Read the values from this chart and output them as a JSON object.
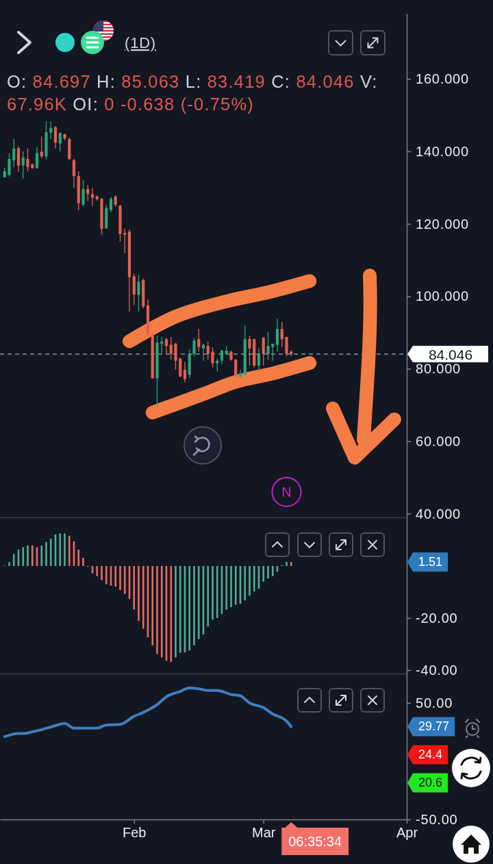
{
  "chart_data": [
    {
      "type": "candlestick",
      "title": "(1D)",
      "subtitle": "O: 84.697 H: 85.063 L: 83.419 C: 84.046 V: 67.96K OI: 0 -0.638 (-0.75%)",
      "x": [
        "--01-04",
        "--01-05",
        "--01-06",
        "--01-07",
        "--01-08",
        "--01-09",
        "--01-10",
        "--01-11",
        "--01-12",
        "--01-13",
        "--01-14",
        "--01-15",
        "--01-16",
        "--01-17",
        "--01-18",
        "--01-19",
        "--01-20",
        "--01-21",
        "--01-22",
        "--01-23",
        "--01-24",
        "--01-25",
        "--01-26",
        "--01-27",
        "--01-28",
        "--01-29",
        "--01-30",
        "--01-31",
        "--02-01",
        "--02-02",
        "--02-03",
        "--02-04",
        "--02-05",
        "--02-06",
        "--02-07",
        "--02-08",
        "--02-09",
        "--02-10",
        "--02-11",
        "--02-12",
        "--02-13",
        "--02-14",
        "--02-15",
        "--02-16",
        "--02-17",
        "--02-18",
        "--02-19",
        "--02-20",
        "--02-21",
        "--02-22",
        "--02-23",
        "--02-24",
        "--02-25",
        "--02-26",
        "--02-27",
        "--02-28",
        "--03-01",
        "--03-02",
        "--03-03",
        "--03-04",
        "--03-05",
        "--03-06",
        "--03-07"
      ],
      "ohlc": [
        [
          132.9,
          135.4,
          132.7,
          134.5
        ],
        [
          133.5,
          139.5,
          133.1,
          137.9
        ],
        [
          137.6,
          143.4,
          135.7,
          140.8
        ],
        [
          140.9,
          141.4,
          134.4,
          136.1
        ],
        [
          136.1,
          140.0,
          132.5,
          138.3
        ],
        [
          137.9,
          140.8,
          134.6,
          135.7
        ],
        [
          136.4,
          136.7,
          135.2,
          135.4
        ],
        [
          135.4,
          141.1,
          135.2,
          139.5
        ],
        [
          139.9,
          144.1,
          138.1,
          138.6
        ],
        [
          138.6,
          148.3,
          137.8,
          145.3
        ],
        [
          145.2,
          148.3,
          143.4,
          146.4
        ],
        [
          146.7,
          147.0,
          140.8,
          142.4
        ],
        [
          142.2,
          145.3,
          140.0,
          145.1
        ],
        [
          144.7,
          144.9,
          143.0,
          143.6
        ],
        [
          143.4,
          143.8,
          137.6,
          137.9
        ],
        [
          137.6,
          137.9,
          129.8,
          133.2
        ],
        [
          133.2,
          134.5,
          123.8,
          125.7
        ],
        [
          125.3,
          132.1,
          124.7,
          129.6
        ],
        [
          129.6,
          130.7,
          126.3,
          128.2
        ],
        [
          128.2,
          129.8,
          124.9,
          127.2
        ],
        [
          127.5,
          127.9,
          126.4,
          126.8
        ],
        [
          126.9,
          127.2,
          117.0,
          118.6
        ],
        [
          118.7,
          125.3,
          118.7,
          124.4
        ],
        [
          123.8,
          127.5,
          123.1,
          126.9
        ],
        [
          127.5,
          127.9,
          124.7,
          125.3
        ],
        [
          125.0,
          125.3,
          115.1,
          117.2
        ],
        [
          117.5,
          118.7,
          111.9,
          117.0
        ],
        [
          117.8,
          118.4,
          95.8,
          105.3
        ],
        [
          105.5,
          106.3,
          97.6,
          100.4
        ],
        [
          100.4,
          106.0,
          95.8,
          104.0
        ],
        [
          104.5,
          104.9,
          96.7,
          97.2
        ],
        [
          97.5,
          99.2,
          89.0,
          89.5
        ],
        [
          89.5,
          89.8,
          77.2,
          77.4
        ],
        [
          77.4,
          89.1,
          69.8,
          87.2
        ],
        [
          86.9,
          88.8,
          84.4,
          87.5
        ],
        [
          88.1,
          88.5,
          84.1,
          86.3
        ],
        [
          86.6,
          88.8,
          82.5,
          84.1
        ],
        [
          86.9,
          87.2,
          79.7,
          82.2
        ],
        [
          82.8,
          83.1,
          77.8,
          77.8
        ],
        [
          79.7,
          81.9,
          76.2,
          77.1
        ],
        [
          78.4,
          85.3,
          77.5,
          84.1
        ],
        [
          84.1,
          88.5,
          83.4,
          87.8
        ],
        [
          88.2,
          91.0,
          84.7,
          86.0
        ],
        [
          85.6,
          86.9,
          82.2,
          86.6
        ],
        [
          86.3,
          87.5,
          82.5,
          84.1
        ],
        [
          84.7,
          85.9,
          80.3,
          81.5
        ],
        [
          81.5,
          82.8,
          79.3,
          82.2
        ],
        [
          82.2,
          85.3,
          81.2,
          85.0
        ],
        [
          84.1,
          86.3,
          83.8,
          85.0
        ],
        [
          84.7,
          85.0,
          82.2,
          82.5
        ],
        [
          82.5,
          82.8,
          77.8,
          77.8
        ],
        [
          77.8,
          79.7,
          77.5,
          78.7
        ],
        [
          78.4,
          91.9,
          78.1,
          88.2
        ],
        [
          88.2,
          89.1,
          80.9,
          85.6
        ],
        [
          88.2,
          88.2,
          80.3,
          80.9
        ],
        [
          80.9,
          85.6,
          79.3,
          84.1
        ],
        [
          88.5,
          88.8,
          80.9,
          84.1
        ],
        [
          84.1,
          90.1,
          82.5,
          86.3
        ],
        [
          86.0,
          86.9,
          82.2,
          86.9
        ],
        [
          86.6,
          93.8,
          84.7,
          91.0
        ],
        [
          91.0,
          92.9,
          86.0,
          88.2
        ],
        [
          88.8,
          88.8,
          83.4,
          84.1
        ],
        [
          84.697,
          85.063,
          83.419,
          84.046
        ]
      ],
      "colors": [
        "#2ba57a",
        "#2ba57a",
        "#2ba57a",
        "#e4604f",
        "#2ba57a",
        "#e4604f",
        "#e4604f",
        "#2ba57a",
        "#e4604f",
        "#2ba57a",
        "#2ba57a",
        "#e4604f",
        "#2ba57a",
        "#e4604f",
        "#e4604f",
        "#e4604f",
        "#e4604f",
        "#2ba57a",
        "#e4604f",
        "#e4604f",
        "#e4604f",
        "#e4604f",
        "#2ba57a",
        "#2ba57a",
        "#e4604f",
        "#e4604f",
        "#e4604f",
        "#e4604f",
        "#e4604f",
        "#2ba57a",
        "#e4604f",
        "#e4604f",
        "#e4604f",
        "#2ba57a",
        "#2ba57a",
        "#e4604f",
        "#e4604f",
        "#e4604f",
        "#e4604f",
        "#e4604f",
        "#2ba57a",
        "#2ba57a",
        "#e4604f",
        "#2ba57a",
        "#e4604f",
        "#e4604f",
        "#2ba57a",
        "#2ba57a",
        "#2ba57a",
        "#e4604f",
        "#e4604f",
        "#2ba57a",
        "#2ba57a",
        "#e4604f",
        "#e4604f",
        "#2ba57a",
        "#e4604f",
        "#2ba57a",
        "#2ba57a",
        "#2ba57a",
        "#e4604f",
        "#e4604f",
        "#e4604f"
      ],
      "series": [
        {
          "type": "line",
          "color": "#f47c45",
          "x": [
            "--01-31",
            "--02-10",
            "--02-21",
            "--03-03",
            "--03-11"
          ],
          "values": [
            87.6,
            94.4,
            98.6,
            101.4,
            104.2
          ]
        },
        {
          "type": "line",
          "color": "#f47c45",
          "x": [
            "--02-05",
            "--02-16",
            "--02-23",
            "--03-03",
            "--03-11"
          ],
          "values": [
            67.9,
            73.0,
            76.4,
            78.7,
            81.6
          ]
        }
      ],
      "xlim": [
        "--01-03",
        "--04-01"
      ],
      "ylim": [
        39,
        178
      ],
      "yticks": [
        {
          "value": 160,
          "label": "160.000"
        },
        {
          "value": 140,
          "label": "140.000"
        },
        {
          "value": 120,
          "label": "120.000"
        },
        {
          "value": 100,
          "label": "100.000"
        },
        {
          "value": 80,
          "label": "80.000"
        },
        {
          "value": 60,
          "label": "60.000"
        },
        {
          "value": 40,
          "label": "40.000"
        }
      ],
      "tick_labels": "y",
      "ref_lines": [
        {
          "axis": "y",
          "value": 84.046,
          "label": "84.046",
          "line_style": "dashed",
          "color": "#8d909b"
        }
      ],
      "annotations": [
        {
          "text": "N",
          "x": "--03-06"
        }
      ]
    },
    {
      "type": "bar",
      "x": [
        "--01-04",
        "--01-05",
        "--01-06",
        "--01-07",
        "--01-08",
        "--01-09",
        "--01-10",
        "--01-11",
        "--01-12",
        "--01-13",
        "--01-14",
        "--01-15",
        "--01-16",
        "--01-17",
        "--01-18",
        "--01-19",
        "--01-20",
        "--01-21",
        "--01-22",
        "--01-23",
        "--01-24",
        "--01-25",
        "--01-26",
        "--01-27",
        "--01-28",
        "--01-29",
        "--01-30",
        "--01-31",
        "--02-01",
        "--02-02",
        "--02-03",
        "--02-04",
        "--02-05",
        "--02-06",
        "--02-07",
        "--02-08",
        "--02-09",
        "--02-10",
        "--02-11",
        "--02-12",
        "--02-13",
        "--02-14",
        "--02-15",
        "--02-16",
        "--02-17",
        "--02-18",
        "--02-19",
        "--02-20",
        "--02-21",
        "--02-22",
        "--02-23",
        "--02-24",
        "--02-25",
        "--02-26",
        "--02-27",
        "--02-28",
        "--03-01",
        "--03-02",
        "--03-03",
        "--03-04",
        "--03-05",
        "--03-06",
        "--03-07"
      ],
      "values": [
        0.2,
        1.5,
        4.6,
        6.3,
        7.2,
        7.9,
        7.9,
        7.2,
        7.9,
        9.2,
        10.5,
        12.1,
        12.5,
        12.5,
        11.6,
        9.5,
        6.3,
        3.1,
        -0.3,
        -2.8,
        -3.9,
        -5.4,
        -7.0,
        -7.5,
        -7.9,
        -9.2,
        -10.7,
        -12.7,
        -16.7,
        -21.1,
        -24.1,
        -27.4,
        -30.5,
        -33.8,
        -35.1,
        -36.4,
        -36.8,
        -35.1,
        -33.3,
        -33.2,
        -32.5,
        -30.5,
        -28.1,
        -26.3,
        -23.2,
        -20.6,
        -20.0,
        -18.4,
        -16.7,
        -15.8,
        -14.9,
        -14.5,
        -13.2,
        -11.4,
        -9.8,
        -8.8,
        -6.0,
        -4.8,
        -3.9,
        -2.2,
        0.3,
        1.6,
        1.51
      ],
      "colors": [
        "#4fae96",
        "#4fae96",
        "#4fae96",
        "#4fae96",
        "#4fae96",
        "#4fae96",
        "#e86b62",
        "#e86b62",
        "#4fae96",
        "#4fae96",
        "#4fae96",
        "#4fae96",
        "#4fae96",
        "#4fae96",
        "#e86b62",
        "#e86b62",
        "#e86b62",
        "#e86b62",
        "#e86b62",
        "#e86b62",
        "#e86b62",
        "#e86b62",
        "#e86b62",
        "#e86b62",
        "#e86b62",
        "#e86b62",
        "#e86b62",
        "#e86b62",
        "#e86b62",
        "#e86b62",
        "#e86b62",
        "#e86b62",
        "#e86b62",
        "#e86b62",
        "#e86b62",
        "#e86b62",
        "#e86b62",
        "#4fae96",
        "#4fae96",
        "#4fae96",
        "#4fae96",
        "#4fae96",
        "#4fae96",
        "#4fae96",
        "#4fae96",
        "#4fae96",
        "#4fae96",
        "#4fae96",
        "#4fae96",
        "#4fae96",
        "#4fae96",
        "#4fae96",
        "#4fae96",
        "#4fae96",
        "#4fae96",
        "#4fae96",
        "#4fae96",
        "#4fae96",
        "#4fae96",
        "#4fae96",
        "#4fae96",
        "#4fae96",
        "#e86b62"
      ],
      "xlim": [
        "--01-03",
        "--04-01"
      ],
      "ylim": [
        -41.3,
        18.7
      ],
      "yticks": [
        {
          "value": -20,
          "label": "-20.00"
        },
        {
          "value": -40,
          "label": "-40.00"
        }
      ],
      "tick_labels": "y",
      "annotations": [
        "1.51"
      ]
    },
    {
      "type": "line",
      "series": [
        {
          "color": "#3f7fbf",
          "x": [
            "--01-04",
            "--01-07",
            "--01-08",
            "--01-10",
            "--01-12",
            "--01-15",
            "--01-17",
            "--01-19",
            "--01-24",
            "--01-26",
            "--01-29",
            "--02-01",
            "--02-03",
            "--02-06",
            "--02-08",
            "--02-11",
            "--02-13",
            "--02-15",
            "--02-17",
            "--02-19",
            "--02-22",
            "--02-24",
            "--02-26",
            "--03-01",
            "--03-03",
            "--03-06",
            "--03-07"
          ],
          "values": [
            21.1,
            23.8,
            23.8,
            25.2,
            27.1,
            30.6,
            32.5,
            28.4,
            28.4,
            31.1,
            31.6,
            38.6,
            41.9,
            48.6,
            55.4,
            60.0,
            63.0,
            62.2,
            60.8,
            60.8,
            57.4,
            56.2,
            50.0,
            46.0,
            40.6,
            34.4,
            29.77
          ]
        }
      ],
      "xlim": [
        "--01-03",
        "--04-01"
      ],
      "ylim": [
        -50,
        75.3
      ],
      "xticks": [
        {
          "value": "--02-01",
          "label": "Feb"
        },
        {
          "value": "--03-01",
          "label": "Mar"
        },
        {
          "value": "--04-01",
          "label": "Apr"
        }
      ],
      "yticks": [
        {
          "value": 50,
          "label": "50.00"
        },
        {
          "value": -50,
          "label": "-50.00"
        }
      ],
      "annotations": [
        "29.77",
        "24.4",
        "20.6",
        "06:35:34"
      ]
    }
  ]
}
